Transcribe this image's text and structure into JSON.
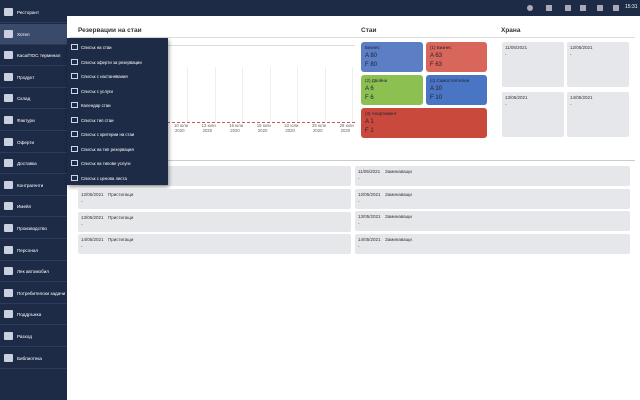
{
  "topbar": {
    "time": "15:31"
  },
  "sidebar": {
    "items": [
      "Ресторант",
      "Хотел",
      "Каса/ПОС терминал",
      "Продукт",
      "Склад",
      "Фактури",
      "Оферти",
      "Доставка",
      "Контрагенти",
      "Имейл",
      "Производство",
      "Персонал",
      "Лек автомобил",
      "Потребителски задачи",
      "Поддръжка",
      "Разход",
      "Библиотека"
    ]
  },
  "reservations": {
    "title": "Резервации на стаи",
    "axis_labels": [
      {
        "date": "10 юли",
        "year": "2020"
      },
      {
        "date": "13 юли",
        "year": "2020"
      },
      {
        "date": "16 юли",
        "year": "2020"
      },
      {
        "date": "19 юли",
        "year": "2020"
      },
      {
        "date": "22 юли",
        "year": "2020"
      },
      {
        "date": "25 юли",
        "year": "2020"
      },
      {
        "date": "28 юли",
        "year": "2020"
      }
    ]
  },
  "menu": {
    "items": [
      "Списък на стаи",
      "Списък оферти за резервации",
      "Списък с настанявания",
      "Списък с услуги",
      "Календар стаи",
      "Списък тип стаи",
      "Списък с критерии на стаи",
      "Списък на тип резервация",
      "Списък на типове услуги",
      "Списък с ценова листа"
    ]
  },
  "rooms": {
    "title": "Стаи",
    "tiles": [
      {
        "name": "Бизнес",
        "a": "A 80",
        "f": "F 80"
      },
      {
        "name": "(1) Бизнес",
        "a": "A 63",
        "f": "F 63"
      },
      {
        "name": "(2) Двойни",
        "a": "A 6",
        "f": "F 6"
      },
      {
        "name": "(с) Самостоятелни",
        "a": "A 10",
        "f": "F 10"
      },
      {
        "name": "(3) Апартамент",
        "a": "A 1",
        "f": "F 1"
      }
    ]
  },
  "food": {
    "title": "Храна",
    "cards": [
      {
        "date": "11/05/2021",
        "value": "-"
      },
      {
        "date": "12/05/2021",
        "value": "-"
      },
      {
        "date": "13/05/2021",
        "value": "-"
      },
      {
        "date": "14/05/2021",
        "value": "-"
      }
    ]
  },
  "movements": {
    "arrivals": [
      {
        "date": "12/05/2021",
        "label": "Пристигащи",
        "value": "-"
      },
      {
        "date": "13/05/2021",
        "label": "Пристигащи",
        "value": "-"
      },
      {
        "date": "14/05/2021",
        "label": "Пристигащи",
        "value": "-"
      }
    ],
    "departures": [
      {
        "date": "11/05/2021",
        "label": "Заминаващи",
        "value": "-"
      },
      {
        "date": "12/05/2021",
        "label": "Заминаващи",
        "value": "-"
      },
      {
        "date": "13/05/2021",
        "label": "Заминаващи",
        "value": "-"
      },
      {
        "date": "14/05/2021",
        "label": "Заминаващи",
        "value": "-"
      }
    ]
  }
}
